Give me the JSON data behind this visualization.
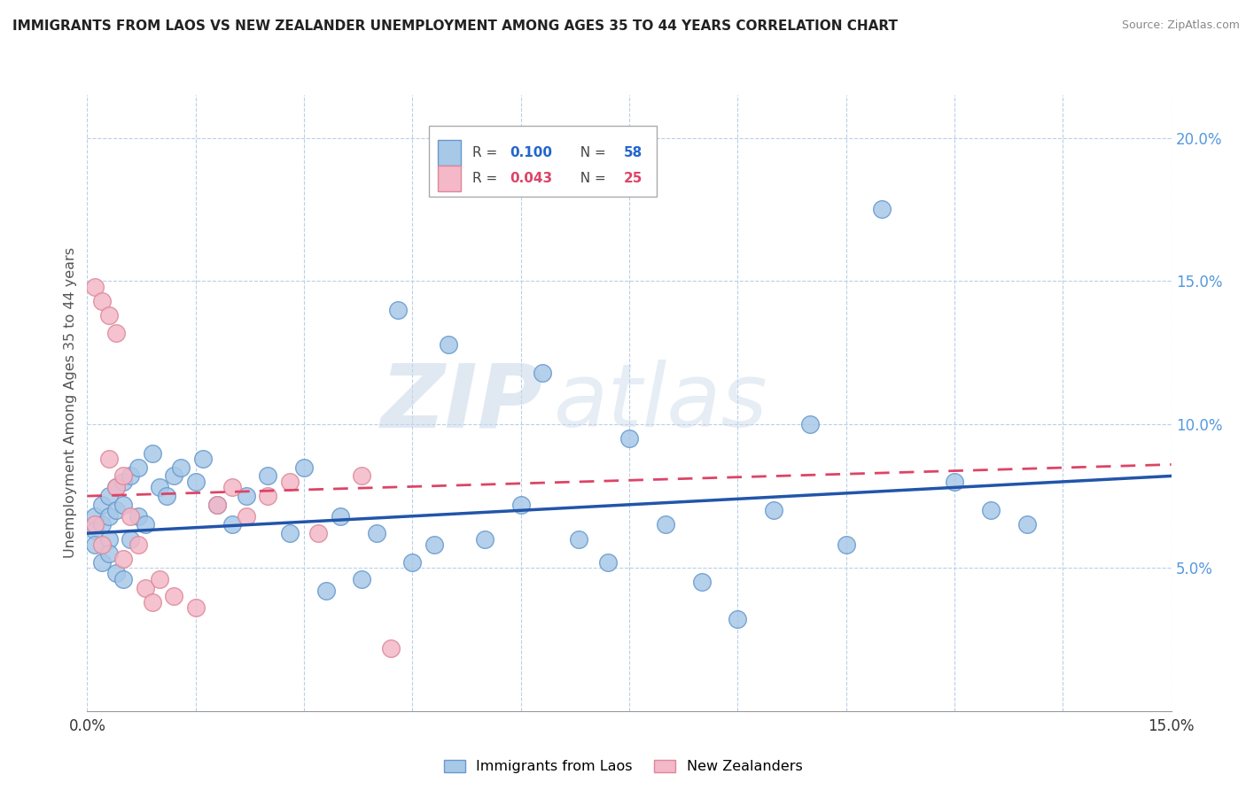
{
  "title": "IMMIGRANTS FROM LAOS VS NEW ZEALANDER UNEMPLOYMENT AMONG AGES 35 TO 44 YEARS CORRELATION CHART",
  "source": "Source: ZipAtlas.com",
  "ylabel": "Unemployment Among Ages 35 to 44 years",
  "right_ytick_labels": [
    "20.0%",
    "15.0%",
    "10.0%",
    "5.0%"
  ],
  "right_ytick_vals": [
    0.2,
    0.15,
    0.1,
    0.05
  ],
  "blue_color": "#a8c8e8",
  "blue_edge_color": "#6699cc",
  "pink_color": "#f4b8c8",
  "pink_edge_color": "#dd8899",
  "blue_line_color": "#2255aa",
  "pink_line_color": "#dd4466",
  "watermark_zip": "ZIP",
  "watermark_atlas": "atlas",
  "legend_r_blue": "0.100",
  "legend_n_blue": "58",
  "legend_r_pink": "0.043",
  "legend_n_pink": "25",
  "blue_scatter_x": [
    0.001,
    0.001,
    0.001,
    0.002,
    0.002,
    0.002,
    0.003,
    0.003,
    0.003,
    0.003,
    0.004,
    0.004,
    0.004,
    0.005,
    0.005,
    0.005,
    0.006,
    0.006,
    0.007,
    0.007,
    0.008,
    0.009,
    0.01,
    0.011,
    0.012,
    0.013,
    0.015,
    0.016,
    0.018,
    0.02,
    0.022,
    0.025,
    0.028,
    0.03,
    0.033,
    0.035,
    0.038,
    0.04,
    0.043,
    0.045,
    0.048,
    0.05,
    0.055,
    0.06,
    0.063,
    0.068,
    0.072,
    0.075,
    0.08,
    0.085,
    0.09,
    0.095,
    0.1,
    0.105,
    0.11,
    0.12,
    0.125,
    0.13
  ],
  "blue_scatter_y": [
    0.068,
    0.063,
    0.058,
    0.072,
    0.065,
    0.052,
    0.075,
    0.068,
    0.06,
    0.055,
    0.078,
    0.07,
    0.048,
    0.08,
    0.072,
    0.046,
    0.082,
    0.06,
    0.085,
    0.068,
    0.065,
    0.09,
    0.078,
    0.075,
    0.082,
    0.085,
    0.08,
    0.088,
    0.072,
    0.065,
    0.075,
    0.082,
    0.062,
    0.085,
    0.042,
    0.068,
    0.046,
    0.062,
    0.14,
    0.052,
    0.058,
    0.128,
    0.06,
    0.072,
    0.118,
    0.06,
    0.052,
    0.095,
    0.065,
    0.045,
    0.032,
    0.07,
    0.1,
    0.058,
    0.175,
    0.08,
    0.07,
    0.065
  ],
  "pink_scatter_x": [
    0.001,
    0.001,
    0.002,
    0.002,
    0.003,
    0.003,
    0.004,
    0.004,
    0.005,
    0.005,
    0.006,
    0.007,
    0.008,
    0.009,
    0.01,
    0.012,
    0.015,
    0.018,
    0.02,
    0.022,
    0.025,
    0.028,
    0.032,
    0.038,
    0.042
  ],
  "pink_scatter_y": [
    0.148,
    0.065,
    0.143,
    0.058,
    0.138,
    0.088,
    0.132,
    0.078,
    0.082,
    0.053,
    0.068,
    0.058,
    0.043,
    0.038,
    0.046,
    0.04,
    0.036,
    0.072,
    0.078,
    0.068,
    0.075,
    0.08,
    0.062,
    0.082,
    0.022
  ],
  "xlim": [
    0.0,
    0.15
  ],
  "ylim": [
    0.0,
    0.215
  ],
  "blue_trend": [
    0.062,
    0.082
  ],
  "pink_trend": [
    0.075,
    0.086
  ]
}
